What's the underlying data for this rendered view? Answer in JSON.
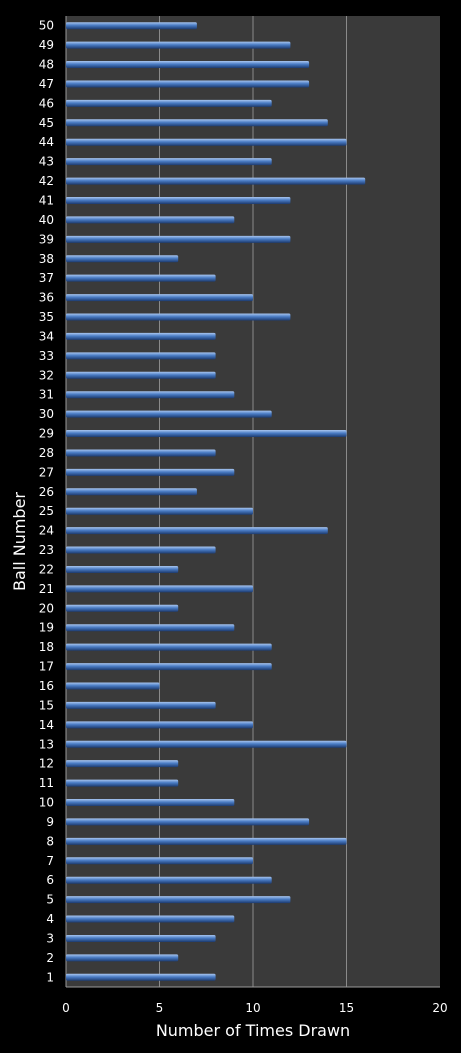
{
  "chart_data": {
    "type": "bar",
    "orientation": "horizontal",
    "xlabel": "Number of Times Drawn",
    "ylabel": "Ball Number",
    "xlim": [
      0,
      20
    ],
    "xticks": [
      "0",
      "5",
      "10",
      "15",
      "20"
    ],
    "grid": true,
    "categories": [
      "1",
      "2",
      "3",
      "4",
      "5",
      "6",
      "7",
      "8",
      "9",
      "10",
      "11",
      "12",
      "13",
      "14",
      "15",
      "16",
      "17",
      "18",
      "19",
      "20",
      "21",
      "22",
      "23",
      "24",
      "25",
      "26",
      "27",
      "28",
      "29",
      "30",
      "31",
      "32",
      "33",
      "34",
      "35",
      "36",
      "37",
      "38",
      "39",
      "40",
      "41",
      "42",
      "43",
      "44",
      "45",
      "46",
      "47",
      "48",
      "49",
      "50"
    ],
    "values": [
      8,
      6,
      8,
      9,
      12,
      11,
      10,
      15,
      13,
      9,
      6,
      6,
      15,
      10,
      8,
      5,
      11,
      11,
      9,
      6,
      10,
      6,
      8,
      14,
      10,
      7,
      9,
      8,
      15,
      11,
      9,
      8,
      8,
      8,
      12,
      10,
      8,
      6,
      12,
      9,
      12,
      16,
      11,
      15,
      14,
      11,
      13,
      13,
      12,
      7
    ],
    "colors": {
      "plot_background": "#3a3a3a",
      "bar": "#4a7cc4",
      "bar_highlight": "#a9c6f0",
      "bar_shadow": "#1c3a6e",
      "gridline": "#8a8a8a",
      "text": "#ffffff"
    }
  }
}
